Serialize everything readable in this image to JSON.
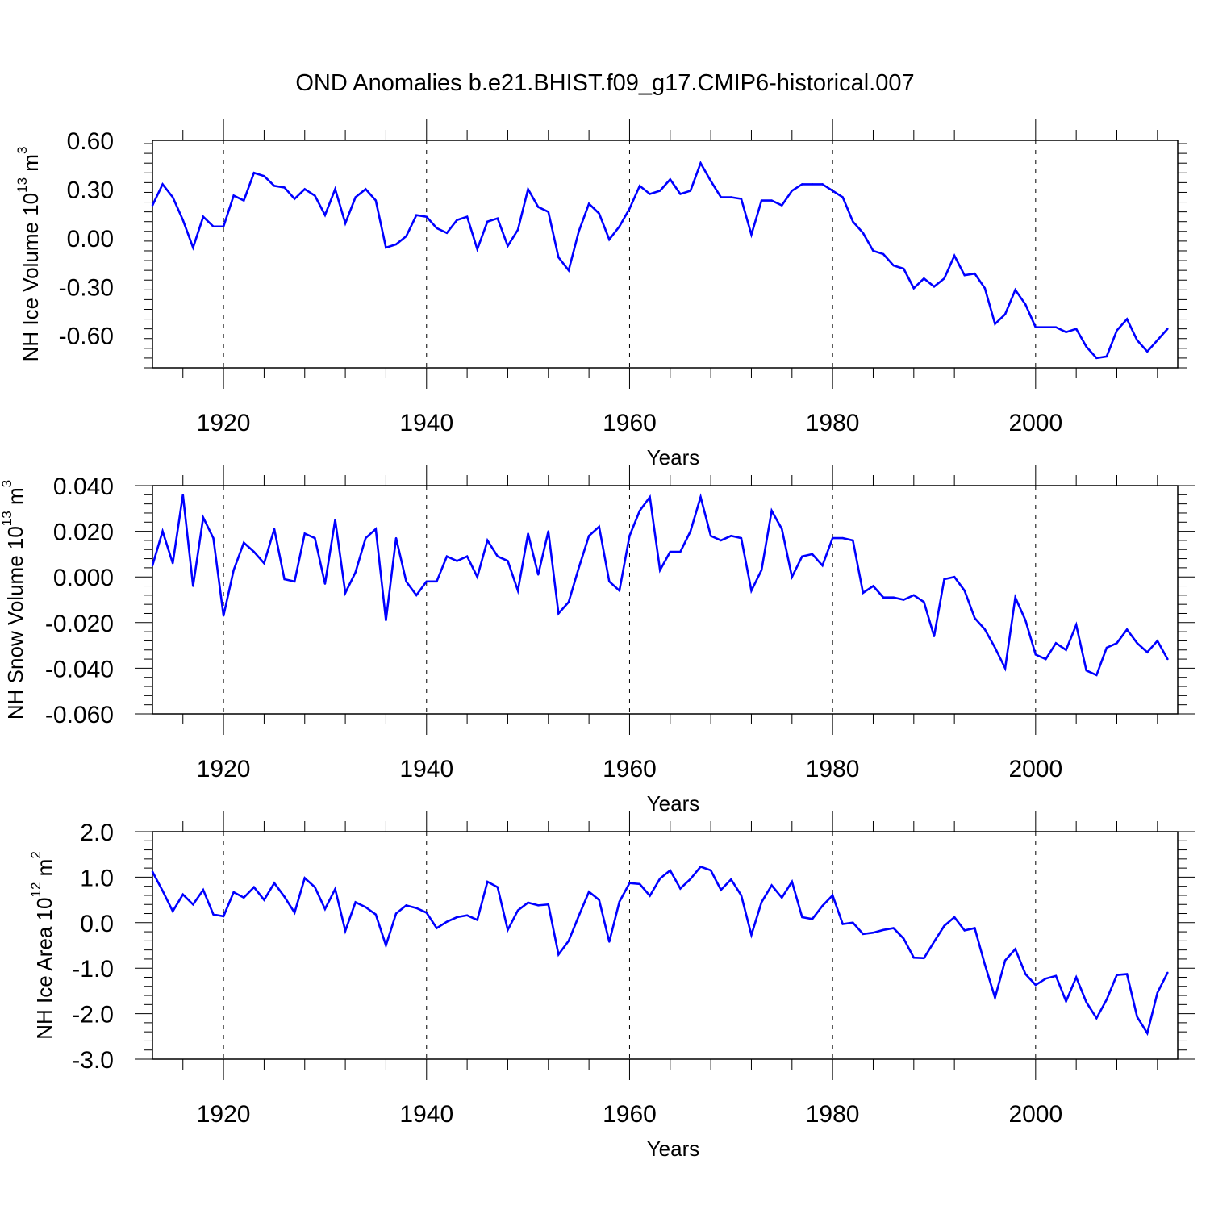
{
  "title": "OND Anomalies b.e21.BHIST.f09_g17.CMIP6-historical.007",
  "style": {
    "line_color": "#0000ff",
    "axis_color": "#000000",
    "grid_color": "#000000"
  },
  "chart_data": [
    {
      "type": "line",
      "ylabel_main": "NH Ice Volume 10",
      "ylabel_exp": "13",
      "ylabel_unit": " m",
      "ylabel_unit_exp": "3",
      "xlabel": "Years",
      "xlim": [
        1913,
        2014
      ],
      "ylim": [
        -0.8,
        0.6
      ],
      "yticks": [
        0.6,
        0.3,
        0.0,
        -0.3,
        -0.6
      ],
      "ytick_labels": [
        "0.60",
        "0.30",
        "0.00",
        "-0.30",
        "-0.60"
      ],
      "xticks": [
        1920,
        1940,
        1960,
        1980,
        2000
      ],
      "xtick_labels": [
        "1920",
        "1940",
        "1960",
        "1980",
        "2000"
      ],
      "grid": "x-dashed",
      "x_start": 1913,
      "values": [
        0.2,
        0.33,
        0.25,
        0.11,
        -0.06,
        0.13,
        0.07,
        0.07,
        0.26,
        0.23,
        0.4,
        0.38,
        0.32,
        0.31,
        0.24,
        0.3,
        0.26,
        0.14,
        0.3,
        0.09,
        0.25,
        0.3,
        0.23,
        -0.06,
        -0.04,
        0.01,
        0.14,
        0.13,
        0.06,
        0.03,
        0.11,
        0.13,
        -0.07,
        0.1,
        0.12,
        -0.05,
        0.05,
        0.3,
        0.19,
        0.16,
        -0.12,
        -0.2,
        0.04,
        0.21,
        0.15,
        -0.01,
        0.07,
        0.18,
        0.32,
        0.27,
        0.29,
        0.36,
        0.27,
        0.29,
        0.46,
        0.35,
        0.25,
        0.25,
        0.24,
        0.02,
        0.23,
        0.23,
        0.2,
        0.29,
        0.33,
        0.33,
        0.33,
        0.29,
        0.25,
        0.1,
        0.03,
        -0.08,
        -0.1,
        -0.17,
        -0.19,
        -0.31,
        -0.25,
        -0.3,
        -0.25,
        -0.11,
        -0.23,
        -0.22,
        -0.31,
        -0.53,
        -0.47,
        -0.32,
        -0.41,
        -0.55,
        -0.55,
        -0.55,
        -0.58,
        -0.56,
        -0.67,
        -0.74,
        -0.73,
        -0.57,
        -0.5,
        -0.63,
        -0.7,
        -0.63,
        -0.56
      ]
    },
    {
      "type": "line",
      "ylabel_main": "NH Snow Volume 10",
      "ylabel_exp": "13",
      "ylabel_unit": " m",
      "ylabel_unit_exp": "3",
      "xlabel": "Years",
      "xlim": [
        1913,
        2014
      ],
      "ylim": [
        -0.06,
        0.04
      ],
      "yticks": [
        0.04,
        0.02,
        0.0,
        -0.02,
        -0.04,
        -0.06
      ],
      "ytick_labels": [
        "0.040",
        "0.020",
        "0.000",
        "-0.020",
        "-0.040",
        "-0.060"
      ],
      "xticks": [
        1920,
        1940,
        1960,
        1980,
        2000
      ],
      "xtick_labels": [
        "1920",
        "1940",
        "1960",
        "1980",
        "2000"
      ],
      "grid": "x-dashed",
      "x_start": 1913,
      "values": [
        0.005,
        0.02,
        0.006,
        0.036,
        -0.004,
        0.026,
        0.017,
        -0.017,
        0.003,
        0.015,
        0.011,
        0.006,
        0.021,
        -0.001,
        -0.002,
        0.019,
        0.017,
        -0.003,
        0.025,
        -0.007,
        0.002,
        0.017,
        0.021,
        -0.019,
        0.017,
        -0.002,
        -0.008,
        -0.002,
        -0.002,
        0.009,
        0.007,
        0.009,
        0.0,
        0.016,
        0.009,
        0.007,
        -0.006,
        0.019,
        0.001,
        0.02,
        -0.016,
        -0.011,
        0.004,
        0.018,
        0.022,
        -0.002,
        -0.006,
        0.018,
        0.029,
        0.035,
        0.003,
        0.011,
        0.011,
        0.02,
        0.035,
        0.018,
        0.016,
        0.018,
        0.017,
        -0.006,
        0.003,
        0.029,
        0.021,
        0.0,
        0.009,
        0.01,
        0.005,
        0.017,
        0.017,
        0.016,
        -0.007,
        -0.004,
        -0.009,
        -0.009,
        -0.01,
        -0.008,
        -0.011,
        -0.026,
        -0.001,
        0.0,
        -0.006,
        -0.018,
        -0.023,
        -0.031,
        -0.04,
        -0.009,
        -0.019,
        -0.034,
        -0.036,
        -0.029,
        -0.032,
        -0.021,
        -0.041,
        -0.043,
        -0.031,
        -0.029,
        -0.023,
        -0.029,
        -0.033,
        -0.028,
        -0.036
      ]
    },
    {
      "type": "line",
      "ylabel_main": "NH Ice Area 10",
      "ylabel_exp": "12",
      "ylabel_unit": " m",
      "ylabel_unit_exp": "2",
      "xlabel": "Years",
      "xlim": [
        1913,
        2014
      ],
      "ylim": [
        -3.0,
        2.0
      ],
      "yticks": [
        2.0,
        1.0,
        0.0,
        -1.0,
        -2.0,
        -3.0
      ],
      "ytick_labels": [
        "2.0",
        "1.0",
        "0.0",
        "-1.0",
        "-2.0",
        "-3.0"
      ],
      "xticks": [
        1920,
        1940,
        1960,
        1980,
        2000
      ],
      "xtick_labels": [
        "1920",
        "1940",
        "1960",
        "1980",
        "2000"
      ],
      "grid": "x-dashed",
      "x_start": 1913,
      "values": [
        1.12,
        0.7,
        0.25,
        0.62,
        0.4,
        0.72,
        0.18,
        0.14,
        0.67,
        0.55,
        0.78,
        0.5,
        0.87,
        0.57,
        0.22,
        0.98,
        0.78,
        0.3,
        0.74,
        -0.18,
        0.45,
        0.34,
        0.18,
        -0.5,
        0.2,
        0.38,
        0.32,
        0.22,
        -0.12,
        0.02,
        0.12,
        0.16,
        0.06,
        0.9,
        0.78,
        -0.16,
        0.27,
        0.44,
        0.38,
        0.4,
        -0.7,
        -0.4,
        0.15,
        0.68,
        0.5,
        -0.42,
        0.46,
        0.87,
        0.85,
        0.59,
        0.97,
        1.15,
        0.75,
        0.96,
        1.23,
        1.15,
        0.72,
        0.95,
        0.6,
        -0.27,
        0.45,
        0.82,
        0.55,
        0.9,
        0.12,
        0.08,
        0.37,
        0.6,
        -0.03,
        0.0,
        -0.25,
        -0.22,
        -0.16,
        -0.12,
        -0.35,
        -0.77,
        -0.78,
        -0.42,
        -0.07,
        0.12,
        -0.17,
        -0.12,
        -0.92,
        -1.65,
        -0.83,
        -0.58,
        -1.13,
        -1.37,
        -1.23,
        -1.17,
        -1.73,
        -1.2,
        -1.75,
        -2.1,
        -1.69,
        -1.15,
        -1.13,
        -2.07,
        -2.43,
        -1.54,
        -1.1
      ]
    }
  ]
}
